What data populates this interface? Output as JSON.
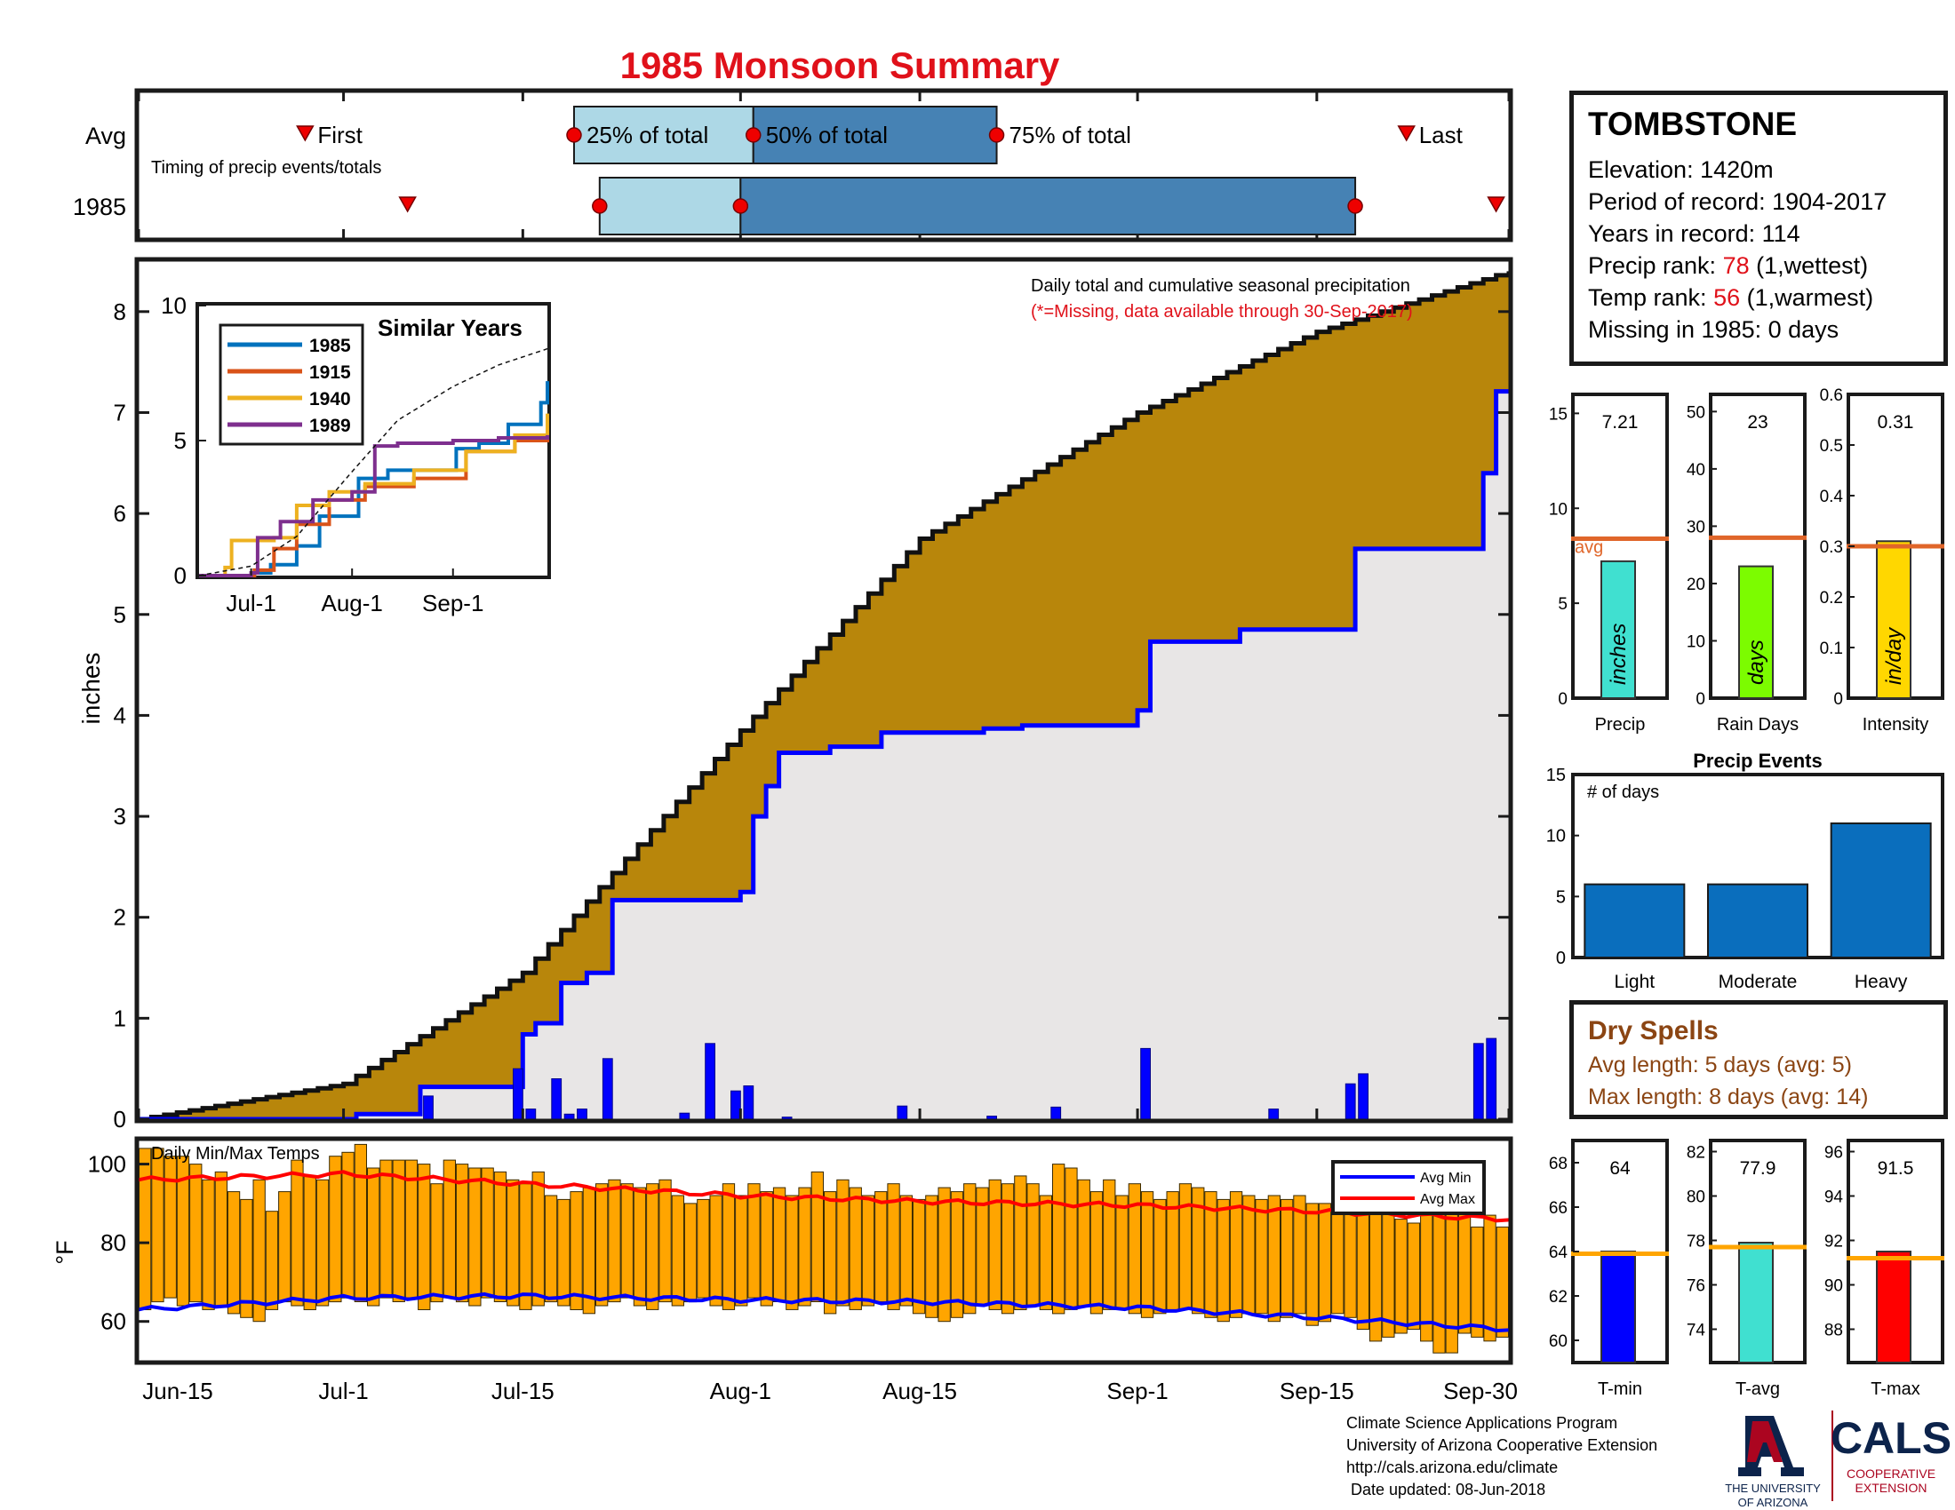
{
  "title": "1985 Monsoon Summary",
  "timing": {
    "row_labels": [
      "Avg",
      "1985"
    ],
    "subtitle": "Timing of precip events/totals",
    "avg": {
      "first": "Jun-28",
      "p25": "Jul-19",
      "p50": "Aug-2",
      "p75": "Aug-21",
      "last": "Sep-22"
    },
    "y1985": {
      "first": "Jul-6",
      "p25": "Jul-21",
      "p50": "Aug-1",
      "p75": "Sep-18",
      "last": "Sep-29"
    },
    "labels": {
      "first": "First",
      "p25": "25% of total",
      "p50": "50% of total",
      "p75": "75% of total",
      "last": "Last"
    }
  },
  "main_chart": {
    "annotation": "Daily total and cumulative seasonal precipitation",
    "missing_note": "(*=Missing, data available through 30-Sep-2017)",
    "ylabel": "inches",
    "ylim": [
      0,
      8.5
    ],
    "yticks": [
      0,
      1,
      2,
      3,
      4,
      5,
      6,
      7,
      8
    ],
    "xticks": [
      "Jun-15",
      "Jul-1",
      "Jul-15",
      "Aug-1",
      "Aug-15",
      "Sep-1",
      "Sep-15",
      "Sep-30"
    ]
  },
  "inset": {
    "title": "Similar Years",
    "yticks": [
      "0",
      "5",
      "10"
    ],
    "xticks": [
      "Jul-1",
      "Aug-1",
      "Sep-1"
    ],
    "legend": [
      "1985",
      "1915",
      "1940",
      "1989"
    ],
    "colors": [
      "#0072bd",
      "#d95319",
      "#edb120",
      "#7e2f8e"
    ]
  },
  "station": {
    "name": "TOMBSTONE",
    "elevation": "Elevation: 1420m",
    "period": "Period of record: 1904-2017",
    "years": "Years in record: 114",
    "precip_rank_label": "Precip rank: ",
    "precip_rank_value": "78",
    "precip_rank_suffix": " (1,wettest)",
    "temp_rank_label": "Temp rank: ",
    "temp_rank_value": "56",
    "temp_rank_suffix": " (1,warmest)",
    "missing": "Missing in 1985: 0 days"
  },
  "stats": [
    {
      "label": "Precip",
      "value_text": "7.21",
      "unit": "inches",
      "value": 7.21,
      "avg": 8.4,
      "avg_label": "avg",
      "ylim": [
        0,
        16
      ],
      "yticks": [
        "0",
        "5",
        "10",
        "15"
      ],
      "color": "#40e0d0"
    },
    {
      "label": "Rain Days",
      "value_text": "23",
      "unit": "days",
      "value": 23,
      "avg": 28,
      "ylim": [
        0,
        53
      ],
      "yticks": [
        "0",
        "10",
        "20",
        "30",
        "40",
        "50"
      ],
      "color": "#7cfc00"
    },
    {
      "label": "Intensity",
      "value_text": "0.31",
      "unit": "in/day",
      "value": 0.31,
      "avg": 0.3,
      "ylim": [
        0,
        0.6
      ],
      "yticks": [
        "0",
        "0.1",
        "0.2",
        "0.3",
        "0.4",
        "0.5",
        "0.6"
      ],
      "color": "#ffd700"
    }
  ],
  "events": {
    "title": "Precip Events",
    "ylabel": "# of days",
    "categories": [
      "Light",
      "Moderate",
      "Heavy"
    ],
    "values": [
      6,
      6,
      11
    ],
    "ylim": [
      0,
      15
    ],
    "yticks": [
      "0",
      "5",
      "10",
      "15"
    ]
  },
  "dry_spells": {
    "title": "Dry Spells",
    "avg_length": "Avg length: 5 days (avg: 5)",
    "max_length": "Max length: 8 days (avg: 14)"
  },
  "temps": {
    "label": "Daily Min/Max Temps",
    "ylabel": "°F",
    "yticks": [
      "60",
      "80",
      "100"
    ],
    "legend": [
      "Avg Min",
      "Avg Max"
    ]
  },
  "temp_stats": [
    {
      "label": "T-min",
      "value_text": "64",
      "value": 64,
      "avg": 63.9,
      "ylim": [
        59,
        69
      ],
      "yticks": [
        "60",
        "62",
        "64",
        "66",
        "68"
      ],
      "color": "#0000ff"
    },
    {
      "label": "T-avg",
      "value_text": "77.9",
      "value": 77.9,
      "avg": 77.7,
      "ylim": [
        72.5,
        82.5
      ],
      "yticks": [
        "74",
        "76",
        "78",
        "80",
        "82"
      ],
      "color": "#40e0d0"
    },
    {
      "label": "T-max",
      "value_text": "91.5",
      "value": 91.5,
      "avg": 91.2,
      "ylim": [
        86.5,
        96.5
      ],
      "yticks": [
        "88",
        "90",
        "92",
        "94",
        "96"
      ],
      "color": "#ff0000"
    }
  ],
  "credits": [
    "Climate Science Applications Program",
    "University of Arizona Cooperative Extension",
    "http://cals.arizona.edu/climate",
    " Date updated: 08-Jun-2018"
  ],
  "logos": {
    "ua_line1": "THE UNIVERSITY",
    "ua_line2": "OF ARIZONA",
    "cals": "CALS",
    "cals_line1": "COOPERATIVE",
    "cals_line2": "EXTENSION"
  },
  "chart_data": [
    {
      "type": "area",
      "title": "Daily total and cumulative seasonal precipitation",
      "ylabel": "inches",
      "x_range": [
        "Jun-15",
        "Sep-30"
      ],
      "ylim": [
        0,
        8.5
      ],
      "series": [
        {
          "name": "avg cumulative",
          "x": [
            "Jun-15",
            "Jul-1",
            "Jul-15",
            "Aug-1",
            "Aug-15",
            "Sep-1",
            "Sep-15",
            "Sep-30"
          ],
          "values": [
            0,
            0.35,
            1.45,
            3.85,
            5.75,
            7.0,
            7.8,
            8.4
          ]
        },
        {
          "name": "1985 cumulative",
          "x": [
            "Jun-15",
            "Jul-2",
            "Jul-7",
            "Jul-15",
            "Jul-16",
            "Jul-18",
            "Jul-20",
            "Jul-22",
            "Aug-1",
            "Aug-2",
            "Aug-3",
            "Aug-4",
            "Aug-8",
            "Aug-12",
            "Aug-20",
            "Aug-23",
            "Sep-1",
            "Sep-2",
            "Sep-9",
            "Sep-18",
            "Sep-20",
            "Sep-28",
            "Sep-29",
            "Sep-30"
          ],
          "values": [
            0,
            0.05,
            0.32,
            0.84,
            0.95,
            1.35,
            1.45,
            2.17,
            2.25,
            3.0,
            3.3,
            3.63,
            3.69,
            3.83,
            3.87,
            3.9,
            4.05,
            4.73,
            4.85,
            5.65,
            5.65,
            6.4,
            7.21,
            7.21
          ]
        },
        {
          "name": "daily precip",
          "x": [
            "Jul-8",
            "Jul-15",
            "Jul-16",
            "Jul-18",
            "Jul-19",
            "Jul-20",
            "Jul-22",
            "Jul-28",
            "Jul-30",
            "Aug-1",
            "Aug-2",
            "Aug-5",
            "Aug-14",
            "Aug-21",
            "Aug-26",
            "Sep-2",
            "Sep-12",
            "Sep-18",
            "Sep-19",
            "Sep-28",
            "Sep-29"
          ],
          "values": [
            0.23,
            0.5,
            0.1,
            0.4,
            0.05,
            0.1,
            0.6,
            0.06,
            0.75,
            0.28,
            0.33,
            0.02,
            0.13,
            0.03,
            0.12,
            0.7,
            0.1,
            0.35,
            0.45,
            0.75,
            0.8
          ]
        }
      ]
    },
    {
      "type": "line",
      "title": "Similar Years",
      "ylim": [
        0,
        10
      ],
      "x_range": [
        "Jun-15",
        "Sep-30"
      ],
      "series": [
        {
          "name": "1985",
          "x": [
            "Jun-15",
            "Jul-2",
            "Jul-7",
            "Jul-15",
            "Jul-22",
            "Aug-3",
            "Aug-12",
            "Sep-2",
            "Sep-9",
            "Sep-18",
            "Sep-28",
            "Sep-30"
          ],
          "values": [
            0,
            0.1,
            0.4,
            1.1,
            2.2,
            3.6,
            3.9,
            4.7,
            4.9,
            5.6,
            6.4,
            7.2
          ]
        },
        {
          "name": "1915",
          "x": [
            "Jun-15",
            "Jul-2",
            "Jul-8",
            "Jul-15",
            "Jul-25",
            "Aug-5",
            "Aug-20",
            "Sep-5",
            "Sep-20",
            "Sep-30"
          ],
          "values": [
            0,
            0.2,
            1.0,
            1.9,
            2.8,
            3.3,
            3.6,
            4.6,
            5.0,
            5.2
          ]
        },
        {
          "name": "1940",
          "x": [
            "Jun-15",
            "Jun-23",
            "Jun-25",
            "Jul-8",
            "Jul-15",
            "Jul-25",
            "Aug-5",
            "Aug-20",
            "Sep-5",
            "Sep-20",
            "Sep-30"
          ],
          "values": [
            0,
            0.3,
            1.3,
            1.4,
            2.6,
            3.1,
            3.4,
            3.9,
            4.6,
            5.2,
            6.0
          ]
        },
        {
          "name": "1989",
          "x": [
            "Jun-15",
            "Jul-1",
            "Jul-3",
            "Jul-10",
            "Jul-20",
            "Aug-1",
            "Aug-8",
            "Aug-15",
            "Sep-1",
            "Sep-15",
            "Sep-30"
          ],
          "values": [
            0,
            0.1,
            1.4,
            2.0,
            2.8,
            3.1,
            4.8,
            4.9,
            5.0,
            5.1,
            5.2
          ]
        },
        {
          "name": "avg",
          "x": [
            "Jun-15",
            "Jul-1",
            "Jul-15",
            "Aug-1",
            "Aug-15",
            "Sep-1",
            "Sep-15",
            "Sep-30"
          ],
          "values": [
            0,
            0.35,
            1.45,
            3.85,
            5.75,
            7.0,
            7.8,
            8.4
          ]
        }
      ]
    },
    {
      "type": "bar",
      "title": "Precip Events",
      "categories": [
        "Light",
        "Moderate",
        "Heavy"
      ],
      "values": [
        6,
        6,
        11
      ],
      "ylim": [
        0,
        15
      ]
    },
    {
      "type": "bar",
      "title": "Daily Min/Max Temps",
      "ylabel": "°F",
      "x_range": [
        "Jun-15",
        "Sep-30"
      ],
      "ylim": [
        50,
        106
      ],
      "series": [
        {
          "name": "Avg Min",
          "x": [
            "Jun-15",
            "Jul-1",
            "Jul-15",
            "Aug-1",
            "Aug-15",
            "Sep-1",
            "Sep-15",
            "Sep-30"
          ],
          "values": [
            63,
            66,
            66.5,
            65.5,
            65,
            63.5,
            61,
            58
          ]
        },
        {
          "name": "Avg Max",
          "x": [
            "Jun-15",
            "Jul-1",
            "Jul-15",
            "Aug-1",
            "Aug-15",
            "Sep-1",
            "Sep-15",
            "Sep-30"
          ],
          "values": [
            96,
            97.5,
            95,
            92,
            90.5,
            89.5,
            88,
            86
          ]
        },
        {
          "name": "Daily Max",
          "values": [
            104,
            104,
            102,
            102,
            100,
            96,
            98,
            93,
            91,
            96,
            88,
            93,
            101,
            97,
            96,
            102,
            103,
            105,
            99,
            101,
            101,
            101,
            100,
            95,
            101,
            100,
            99,
            99,
            98,
            96,
            95,
            98,
            92,
            91,
            93,
            94,
            95,
            96,
            95,
            94,
            95,
            96,
            92,
            90,
            91,
            92,
            95,
            92,
            95,
            93,
            94,
            92,
            94,
            98,
            93,
            96,
            94,
            92,
            93,
            95,
            92,
            91,
            92,
            94,
            93,
            95,
            94,
            96,
            95,
            97,
            95,
            92,
            100,
            99,
            96,
            93,
            96,
            92,
            95,
            93,
            91,
            93,
            95,
            94,
            93,
            91,
            93,
            92,
            91,
            92,
            91,
            92,
            90,
            90,
            95,
            98,
            93,
            96,
            94,
            86,
            85,
            89,
            93,
            94,
            92,
            84,
            87,
            84
          ]
        },
        {
          "name": "Daily Min",
          "values": [
            63,
            65,
            66,
            64,
            65,
            63,
            64,
            62,
            61,
            60,
            63,
            65,
            64,
            63,
            64,
            65,
            66,
            65,
            64,
            66,
            65,
            66,
            63,
            65,
            66,
            65,
            64,
            66,
            65,
            64,
            63,
            64,
            65,
            64,
            63,
            62,
            64,
            65,
            66,
            64,
            63,
            65,
            64,
            65,
            66,
            64,
            63,
            64,
            66,
            64,
            65,
            63,
            64,
            65,
            62,
            64,
            63,
            64,
            65,
            63,
            64,
            62,
            61,
            60,
            61,
            62,
            64,
            63,
            62,
            63,
            64,
            63,
            62,
            63,
            64,
            62,
            63,
            63,
            62,
            61,
            62,
            63,
            63,
            62,
            61,
            60,
            61,
            62,
            62,
            60,
            61,
            62,
            59,
            60,
            62,
            61,
            58,
            55,
            56,
            57,
            58,
            55,
            52,
            52,
            57,
            56,
            55,
            56
          ]
        }
      ]
    }
  ]
}
